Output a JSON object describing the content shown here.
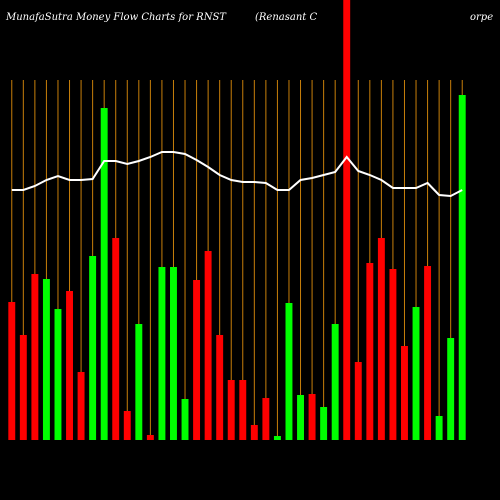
{
  "chart_data": {
    "type": "bar",
    "title": "MunafaSutra  Money Flow  Charts for RNST",
    "subtitle": "(Renasant C",
    "subtitle_end": "orpe",
    "categories": [
      null,
      null,
      null,
      null,
      null,
      null,
      null,
      null,
      null,
      null,
      null,
      null,
      null,
      null,
      null,
      null,
      null,
      null,
      null,
      null,
      null,
      null,
      null,
      null,
      null,
      null,
      null,
      null,
      null,
      null,
      null,
      null,
      null,
      null,
      null,
      null,
      null,
      null,
      null,
      null
    ],
    "values": [
      138,
      105,
      166,
      161,
      131,
      149,
      68,
      184,
      332,
      202,
      29,
      116,
      5,
      173,
      173,
      41,
      160,
      189,
      105,
      60,
      60,
      15,
      42,
      4,
      137,
      45,
      46,
      33,
      116,
      440,
      78,
      177,
      202,
      171,
      94,
      133,
      174,
      24,
      102,
      345
    ],
    "bar_colors": [
      "#ff0000",
      "#ff0000",
      "#ff0000",
      "#00ff00",
      "#00ff00",
      "#ff0000",
      "#ff0000",
      "#00ff00",
      "#00ff00",
      "#ff0000",
      "#ff0000",
      "#00ff00",
      "#ff0000",
      "#00ff00",
      "#00ff00",
      "#00ff00",
      "#ff0000",
      "#ff0000",
      "#ff0000",
      "#ff0000",
      "#ff0000",
      "#ff0000",
      "#ff0000",
      "#00ff00",
      "#00ff00",
      "#00ff00",
      "#ff0000",
      "#00ff00",
      "#00ff00",
      "#ff0000",
      "#ff0000",
      "#ff0000",
      "#ff0000",
      "#ff0000",
      "#ff0000",
      "#00ff00",
      "#ff0000",
      "#00ff00",
      "#00ff00",
      "#00ff00"
    ],
    "line_values": [
      250,
      250,
      254,
      260,
      264,
      260,
      260,
      261,
      279,
      279,
      276,
      279,
      283,
      288,
      288,
      286,
      280,
      273,
      265,
      260,
      258,
      258,
      257,
      250,
      250,
      260,
      262,
      265,
      268,
      283,
      269,
      265,
      260,
      252,
      252,
      252,
      257,
      245,
      244,
      250
    ],
    "line_color": "#ffffff",
    "gridline_color": "#c87f0a",
    "ylim": [
      0,
      440
    ]
  }
}
